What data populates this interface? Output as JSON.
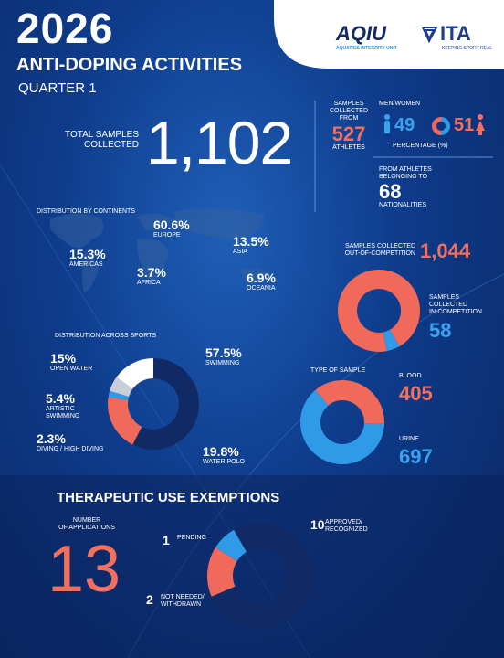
{
  "header": {
    "year": "2026",
    "title": "ANTI-DOPING ACTIVITIES",
    "subtitle": "QUARTER 1"
  },
  "logos": {
    "aqiu": "AQIU",
    "aqiu_sub": "AQUATICS INTEGRITY UNIT",
    "ita": "ITA",
    "ita_sub": "KEEPING SPORT REAL"
  },
  "total": {
    "label": [
      "TOTAL SAMPLES",
      "COLLECTED"
    ],
    "value": "1,102"
  },
  "athletes": {
    "label": [
      "SAMPLES",
      "COLLECTED",
      "FROM"
    ],
    "value": "527",
    "unit": "ATHLETES"
  },
  "gender": {
    "label": "MEN/WOMEN",
    "men": {
      "value": 49,
      "color": "#2f9be8"
    },
    "women": {
      "value": 51,
      "color": "#f0695a"
    },
    "unit": "PERCENTAGE (%)"
  },
  "nationalities": {
    "label": [
      "FROM ATHLETES",
      "BELONGING TO"
    ],
    "value": "68",
    "unit": "NATIONALITIES"
  },
  "continents": {
    "title": "DISTRIBUTION BY CONTINENTS",
    "items": [
      {
        "value": "60.6%",
        "name": "EUROPE"
      },
      {
        "value": "15.3%",
        "name": "AMERICAS"
      },
      {
        "value": "3.7%",
        "name": "AFRICA"
      },
      {
        "value": "13.5%",
        "name": "ASIA"
      },
      {
        "value": "6.9%",
        "name": "OCEANIA"
      }
    ]
  },
  "competition": {
    "segments": [
      {
        "label": [
          "SAMPLES COLLECTED",
          "OUT-OF-COMPETITION"
        ],
        "value": 1044,
        "value_label": "1,044",
        "color": "#f0695a"
      },
      {
        "label": [
          "SAMPLES",
          "COLLECTED",
          "IN-COMPETITION"
        ],
        "value": 58,
        "color": "#2f9be8"
      }
    ]
  },
  "sports": {
    "title": "DISTRIBUTION ACROSS SPORTS",
    "segments": [
      {
        "name": [
          "SWIMMING"
        ],
        "value": 57.5,
        "value_label": "57.5%",
        "color": "#112a66"
      },
      {
        "name": [
          "WATER POLO"
        ],
        "value": 19.8,
        "value_label": "19.8%",
        "color": "#f0695a"
      },
      {
        "name": [
          "DIVING / HIGH DIVING"
        ],
        "value": 2.3,
        "value_label": "2.3%",
        "color": "#2f9be8"
      },
      {
        "name": [
          "ARTISTIC",
          "SWIMMING"
        ],
        "value": 5.4,
        "value_label": "5.4%",
        "color": "#c9ced8"
      },
      {
        "name": [
          "OPEN WATER"
        ],
        "value": 15,
        "value_label": "15%",
        "color": "#ffffff"
      }
    ]
  },
  "sample_type": {
    "title": "TYPE OF SAMPLE",
    "segments": [
      {
        "name": "BLOOD",
        "value": 405,
        "color": "#f0695a"
      },
      {
        "name": "URINE",
        "value": 697,
        "color": "#2f9be8"
      }
    ]
  },
  "tue": {
    "title": "THERAPEUTIC USE EXEMPTIONS",
    "label": [
      "NUMBER",
      "OF APPLICATIONS"
    ],
    "total": 13,
    "segments": [
      {
        "name": [
          "APPROVED/",
          "RECOGNIZED"
        ],
        "value": 10,
        "color": "#112a66"
      },
      {
        "name": [
          "NOT NEEDED/",
          "WITHDRAWN"
        ],
        "value": 2,
        "color": "#f0695a"
      },
      {
        "name": [
          "PENDING"
        ],
        "value": 1,
        "color": "#2f9be8"
      }
    ]
  }
}
